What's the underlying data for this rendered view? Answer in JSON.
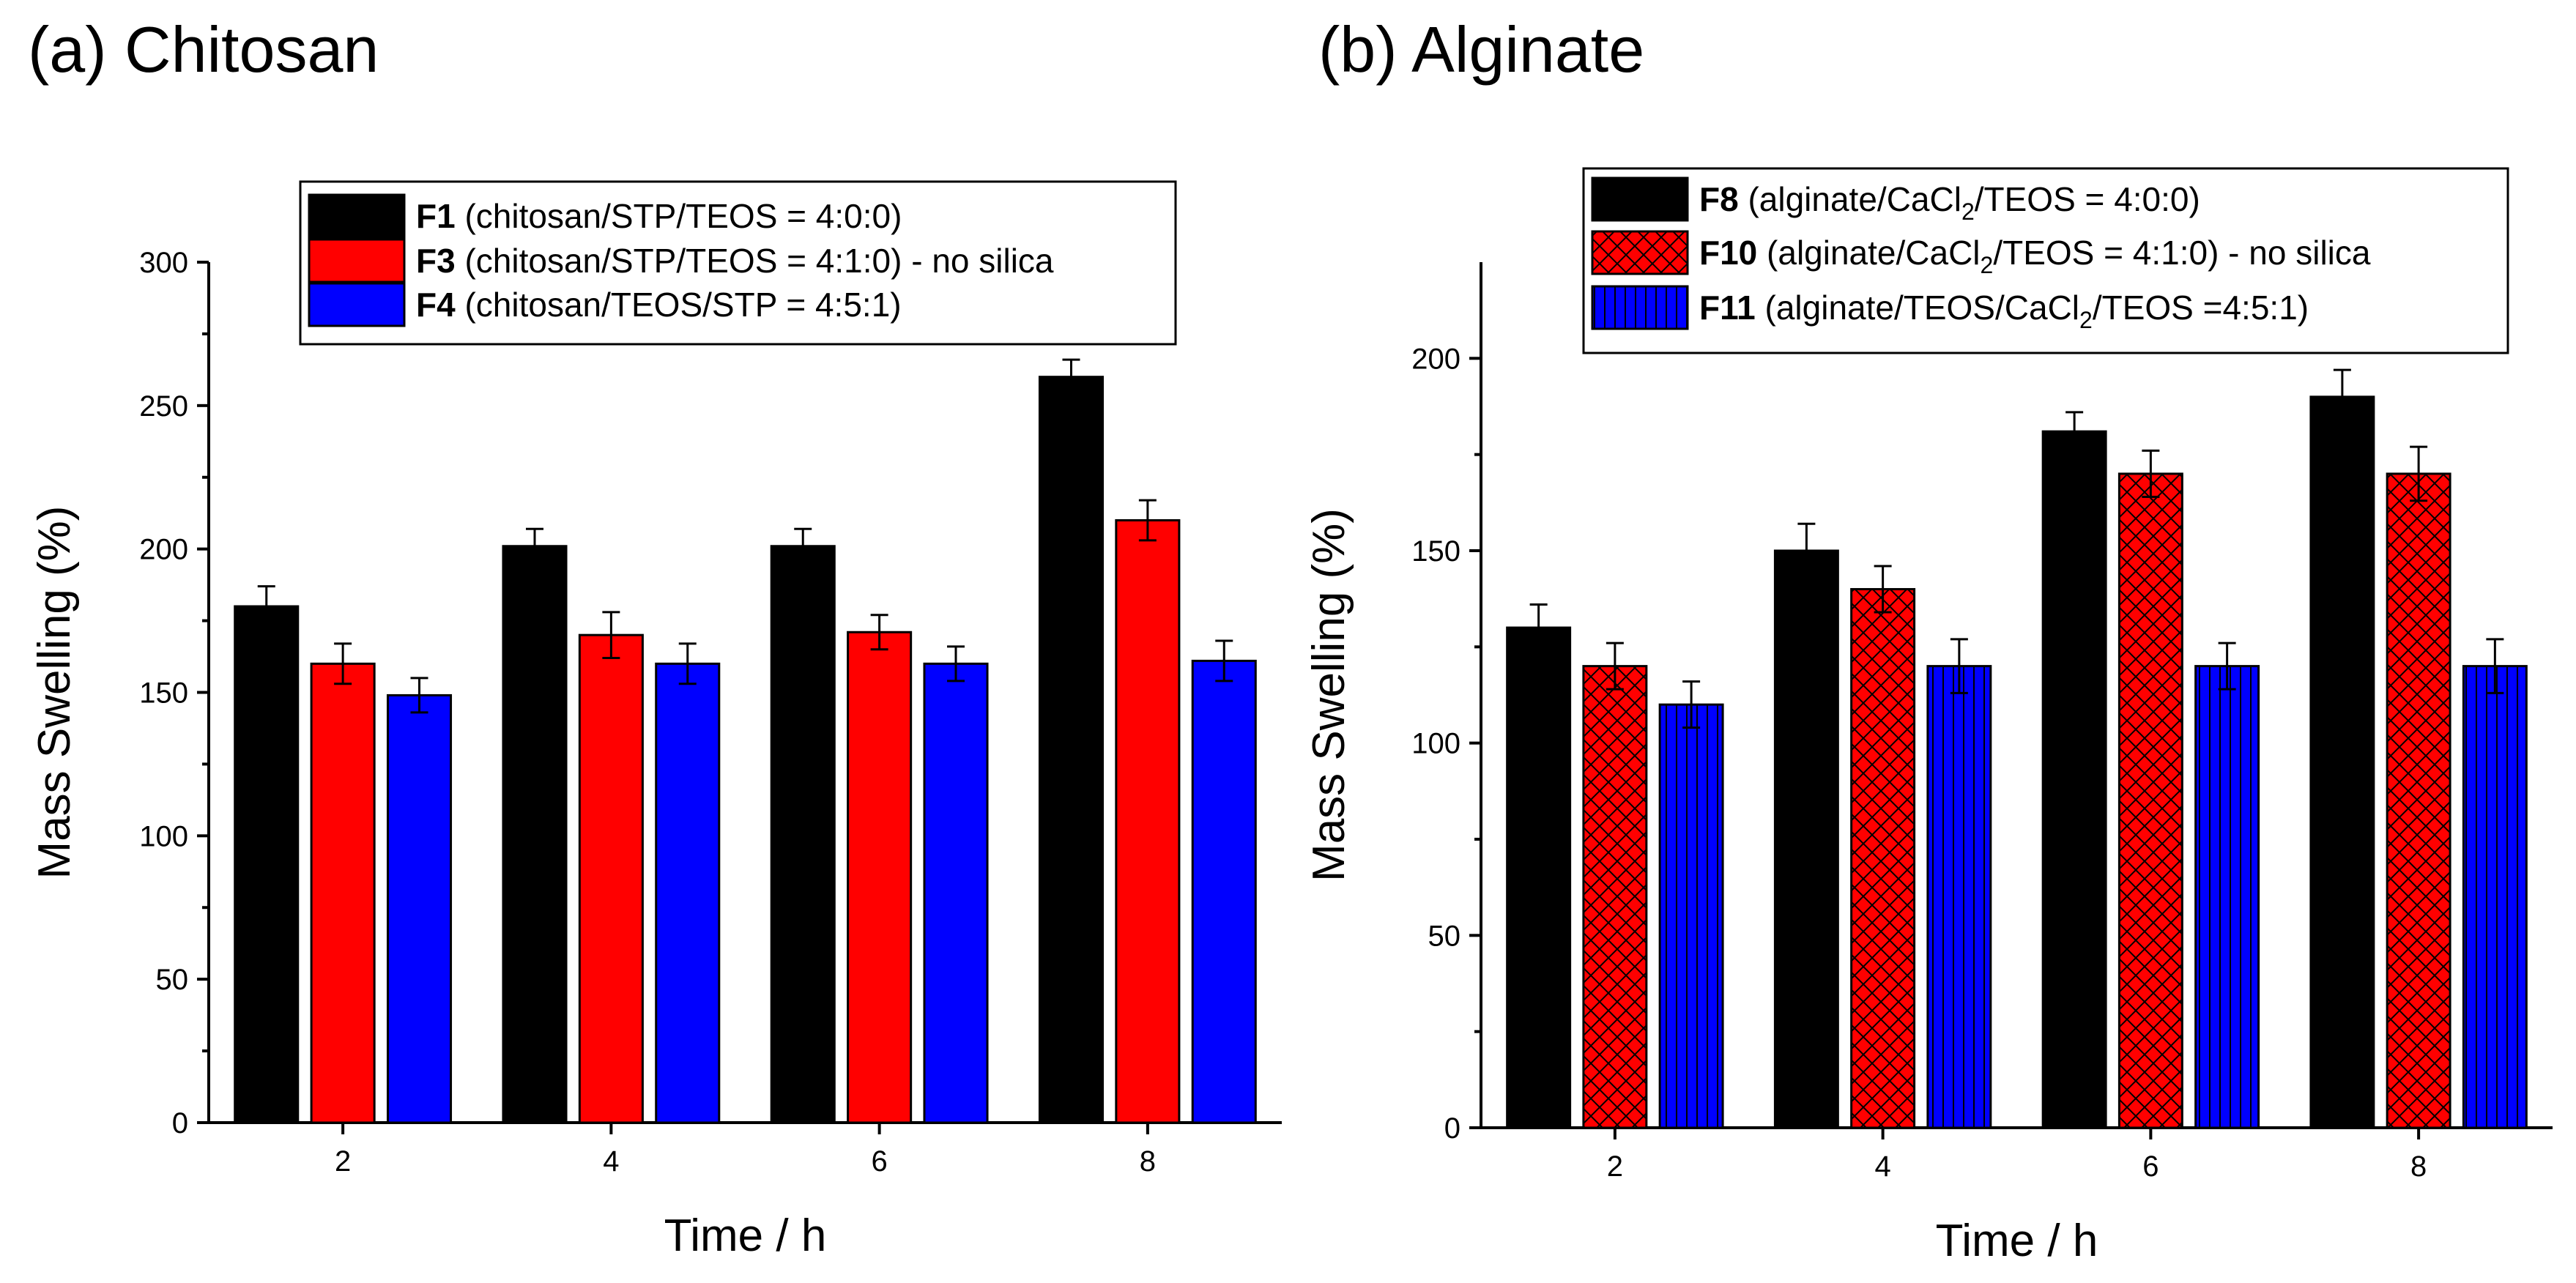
{
  "chart_data": [
    {
      "type": "bar",
      "panel_label": "(a)",
      "title": "Chitosan",
      "xlabel": "Time / h",
      "ylabel": "Mass Swelling (%)",
      "categories": [
        "2",
        "4",
        "6",
        "8"
      ],
      "ylim": [
        0,
        300
      ],
      "yticks": [
        0,
        50,
        100,
        150,
        200,
        250,
        300
      ],
      "grid": false,
      "legend_position": "top-center",
      "series": [
        {
          "name": "F1",
          "legend_rest": " (chitosan/STP/TEOS = 4:0:0)",
          "color": "#000000",
          "pattern": "solid",
          "values": [
            180,
            201,
            201,
            260
          ],
          "errors": [
            7,
            6,
            6,
            6
          ]
        },
        {
          "name": "F3",
          "legend_rest": " (chitosan/STP/TEOS = 4:1:0) - no silica",
          "color": "#ff0000",
          "pattern": "solid",
          "values": [
            160,
            170,
            171,
            210
          ],
          "errors": [
            7,
            8,
            6,
            7
          ]
        },
        {
          "name": "F4",
          "legend_rest": " (chitosan/TEOS/STP = 4:5:1)",
          "color": "#0000ff",
          "pattern": "solid",
          "values": [
            149,
            160,
            160,
            161
          ],
          "errors": [
            6,
            7,
            6,
            7
          ]
        }
      ]
    },
    {
      "type": "bar",
      "panel_label": "(b)",
      "title": "Alginate",
      "xlabel": "Time / h",
      "ylabel": "Mass Swelling (%)",
      "categories": [
        "2",
        "4",
        "6",
        "8"
      ],
      "ylim": [
        0,
        225
      ],
      "yticks": [
        0,
        50,
        100,
        150,
        200
      ],
      "grid": false,
      "legend_position": "top-center",
      "series": [
        {
          "name": "F8",
          "legend_rest": [
            " (alginate/CaCl",
            "2",
            "/TEOS = 4:0:0)"
          ],
          "color": "#000000",
          "pattern": "solid",
          "values": [
            130,
            150,
            181,
            190
          ],
          "errors": [
            6,
            7,
            5,
            7
          ]
        },
        {
          "name": "F10",
          "legend_rest": [
            " (alginate/CaCl",
            "2",
            "/TEOS = 4:1:0) - no silica"
          ],
          "color": "#ff0000",
          "pattern": "crosshatch",
          "values": [
            120,
            140,
            170,
            170
          ],
          "errors": [
            6,
            6,
            6,
            7
          ]
        },
        {
          "name": "F11",
          "legend_rest": [
            " (alginate/TEOS/CaCl",
            "2",
            "/TEOS =4:5:1)"
          ],
          "color": "#0000ff",
          "pattern": "vertical",
          "values": [
            110,
            120,
            120,
            120
          ],
          "errors": [
            6,
            7,
            6,
            7
          ]
        }
      ]
    }
  ]
}
